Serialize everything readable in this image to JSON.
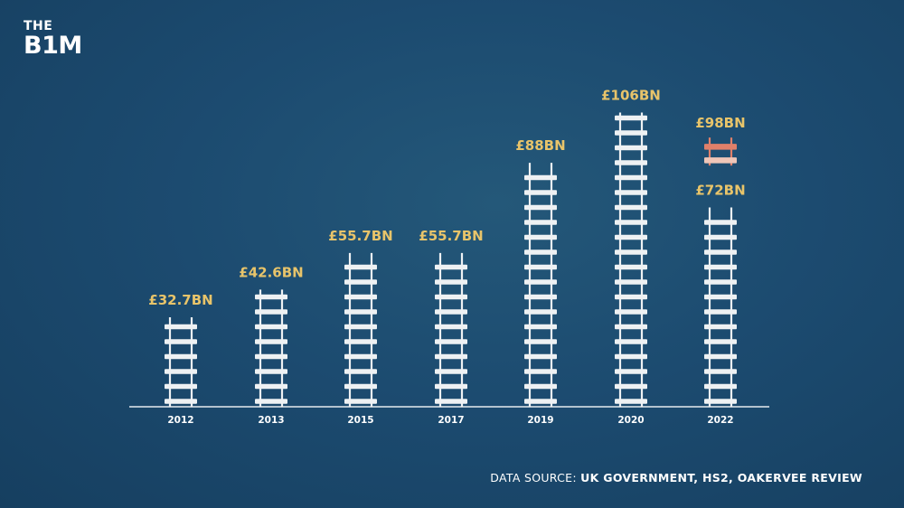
{
  "logo": {
    "line1": "THE",
    "line2": "B1M"
  },
  "source": {
    "prefix": "DATA SOURCE:",
    "text": "UK GOVERNMENT, HS2, OAKERVEE REVIEW"
  },
  "colors": {
    "background": "#1d4a6f",
    "track": "#eef1f3",
    "label": "#e8c46a",
    "axis": "#e6ebef",
    "increase": "#e0806a",
    "increase_light": "#efc6b8"
  },
  "chart_data": {
    "type": "bar",
    "style": "railway-track bars",
    "categories": [
      "2012",
      "2013",
      "2015",
      "2017",
      "2019",
      "2020",
      "2022"
    ],
    "values": [
      32.7,
      42.6,
      55.7,
      55.7,
      88,
      106,
      72
    ],
    "labels": [
      "£32.7BN",
      "£42.6BN",
      "£55.7BN",
      "£55.7BN",
      "£88BN",
      "£106BN",
      "£72BN"
    ],
    "range_top": {
      "category": "2022",
      "value": 98,
      "label": "£98BN"
    },
    "ylim": [
      0,
      110
    ],
    "grid": false,
    "legend": "none"
  }
}
